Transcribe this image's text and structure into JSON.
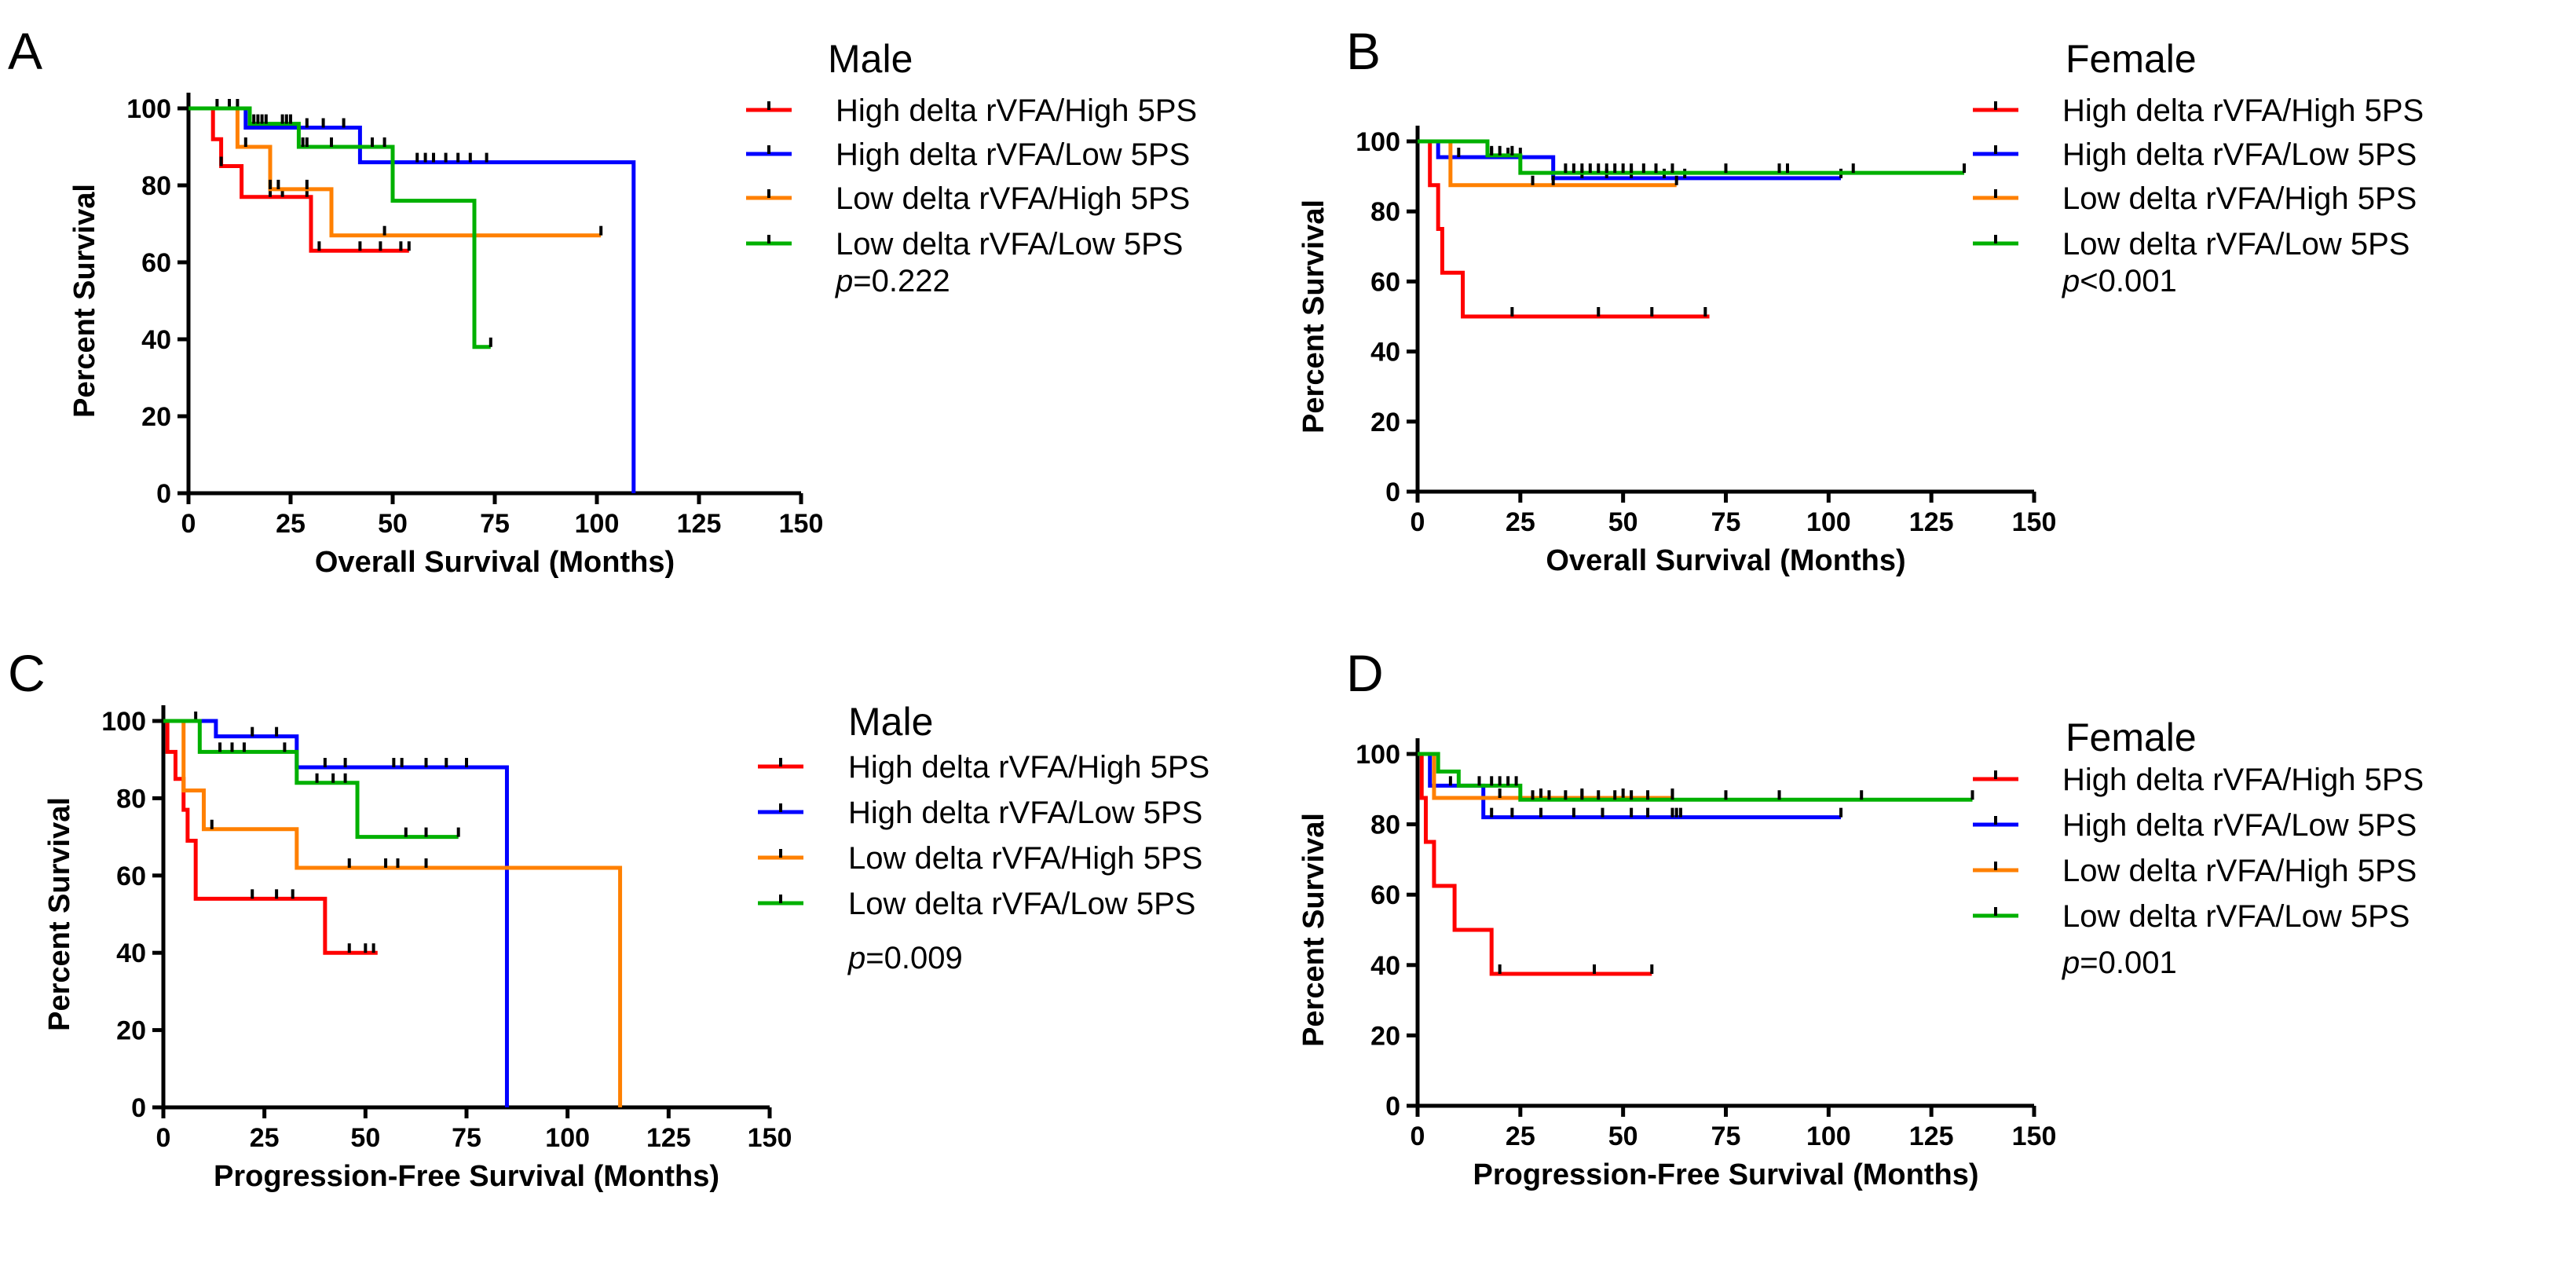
{
  "chart_data": [
    {
      "panel": "A",
      "type": "line",
      "title": "Male",
      "xlabel": "Overall Survival (Months)",
      "ylabel": "Percent Survival",
      "xlim": [
        0,
        150
      ],
      "ylim": [
        0,
        100
      ],
      "xticks": [
        0,
        25,
        50,
        75,
        100,
        125,
        150
      ],
      "yticks": [
        0,
        20,
        40,
        60,
        80,
        100
      ],
      "p_value": "p=0.222",
      "series": [
        {
          "name": "High delta rVFA/High 5PS",
          "color": "#ff0000",
          "steps": [
            [
              0,
              100
            ],
            [
              6,
              92
            ],
            [
              8,
              85
            ],
            [
              13,
              77
            ],
            [
              30,
              63
            ],
            [
              54,
              63
            ]
          ],
          "censored": [
            8,
            20,
            23,
            29,
            32,
            42,
            47,
            52,
            54
          ]
        },
        {
          "name": "High delta rVFA/Low 5PS",
          "color": "#0000ff",
          "steps": [
            [
              0,
              100
            ],
            [
              14,
              95
            ],
            [
              42,
              86
            ],
            [
              109,
              0
            ]
          ],
          "censored": [
            7,
            10,
            12,
            29,
            33,
            38,
            56,
            58,
            60,
            63,
            66,
            69,
            73
          ]
        },
        {
          "name": "Low delta rVFA/High 5PS",
          "color": "#ff8000",
          "steps": [
            [
              0,
              100
            ],
            [
              12,
              90
            ],
            [
              20,
              79
            ],
            [
              35,
              67
            ],
            [
              101,
              67
            ]
          ],
          "censored": [
            14,
            20,
            22,
            29,
            48,
            101
          ]
        },
        {
          "name": "Low delta rVFA/Low 5PS",
          "color": "#00b000",
          "steps": [
            [
              0,
              100
            ],
            [
              15,
              96
            ],
            [
              27,
              90
            ],
            [
              50,
              76
            ],
            [
              70,
              38
            ],
            [
              74,
              38
            ]
          ],
          "censored": [
            16,
            17,
            18,
            19,
            23,
            24,
            25,
            28,
            29,
            35,
            45,
            48,
            74
          ]
        }
      ]
    },
    {
      "panel": "B",
      "type": "line",
      "title": "Female",
      "xlabel": "Overall Survival (Months)",
      "ylabel": "Percent Survival",
      "xlim": [
        0,
        150
      ],
      "ylim": [
        0,
        100
      ],
      "xticks": [
        0,
        25,
        50,
        75,
        100,
        125,
        150
      ],
      "yticks": [
        0,
        20,
        40,
        60,
        80,
        100
      ],
      "p_value": "p<0.001",
      "series": [
        {
          "name": "High delta rVFA/High 5PS",
          "color": "#ff0000",
          "steps": [
            [
              0,
              100
            ],
            [
              3,
              87.5
            ],
            [
              5,
              75
            ],
            [
              6,
              62.5
            ],
            [
              11,
              50
            ],
            [
              71,
              50
            ]
          ],
          "censored": [
            23,
            44,
            57,
            70
          ]
        },
        {
          "name": "High delta rVFA/Low 5PS",
          "color": "#0000ff",
          "steps": [
            [
              0,
              100
            ],
            [
              5,
              95.5
            ],
            [
              33,
              89.5
            ],
            [
              103,
              89.5
            ]
          ],
          "censored": [
            10,
            18,
            22,
            25,
            40,
            46,
            52,
            60,
            65,
            103
          ]
        },
        {
          "name": "Low delta rVFA/High 5PS",
          "color": "#ff8000",
          "steps": [
            [
              0,
              100
            ],
            [
              8,
              87.5
            ],
            [
              63,
              87.5
            ]
          ],
          "censored": [
            28,
            33,
            63
          ]
        },
        {
          "name": "Low delta rVFA/Low 5PS",
          "color": "#00b000",
          "steps": [
            [
              0,
              100
            ],
            [
              17,
              96
            ],
            [
              25,
              91
            ],
            [
              133,
              91
            ]
          ],
          "censored": [
            18,
            20,
            23,
            36,
            38,
            40,
            42,
            44,
            46,
            48,
            50,
            52,
            55,
            58,
            62,
            75,
            88,
            90,
            106,
            133
          ]
        }
      ]
    },
    {
      "panel": "C",
      "type": "line",
      "title": "Male",
      "xlabel": "Progression-Free Survival (Months)",
      "ylabel": "Percent Survival",
      "xlim": [
        0,
        150
      ],
      "ylim": [
        0,
        100
      ],
      "xticks": [
        0,
        25,
        50,
        75,
        100,
        125,
        150
      ],
      "yticks": [
        0,
        20,
        40,
        60,
        80,
        100
      ],
      "p_value": "p=0.009",
      "series": [
        {
          "name": "High delta rVFA/High 5PS",
          "color": "#ff0000",
          "steps": [
            [
              0,
              100
            ],
            [
              1,
              92
            ],
            [
              3,
              85
            ],
            [
              5,
              77
            ],
            [
              6,
              69
            ],
            [
              8,
              54
            ],
            [
              40,
              40
            ],
            [
              53,
              40
            ]
          ],
          "censored": [
            22,
            28,
            32,
            46,
            50,
            52
          ]
        },
        {
          "name": "High delta rVFA/Low 5PS",
          "color": "#0000ff",
          "steps": [
            [
              0,
              100
            ],
            [
              13,
              96
            ],
            [
              33,
              88
            ],
            [
              85,
              0
            ]
          ],
          "censored": [
            8,
            22,
            28,
            40,
            45,
            57,
            59,
            65,
            70,
            75
          ]
        },
        {
          "name": "Low delta rVFA/High 5PS",
          "color": "#ff8000",
          "steps": [
            [
              0,
              100
            ],
            [
              5,
              82
            ],
            [
              10,
              72
            ],
            [
              33,
              62
            ],
            [
              113,
              0
            ]
          ],
          "censored": [
            12,
            46,
            55,
            58,
            65
          ]
        },
        {
          "name": "Low delta rVFA/Low 5PS",
          "color": "#00b000",
          "steps": [
            [
              0,
              100
            ],
            [
              9,
              92
            ],
            [
              33,
              84
            ],
            [
              48,
              70
            ],
            [
              73,
              70
            ]
          ],
          "censored": [
            14,
            17,
            20,
            30,
            38,
            42,
            45,
            60,
            65,
            73
          ]
        }
      ]
    },
    {
      "panel": "D",
      "type": "line",
      "title": "Female",
      "xlabel": "Progression-Free Survival (Months)",
      "ylabel": "Percent Survival",
      "xlim": [
        0,
        150
      ],
      "ylim": [
        0,
        100
      ],
      "xticks": [
        0,
        25,
        50,
        75,
        100,
        125,
        150
      ],
      "yticks": [
        0,
        20,
        40,
        60,
        80,
        100
      ],
      "p_value": "p=0.001",
      "series": [
        {
          "name": "High delta rVFA/High 5PS",
          "color": "#ff0000",
          "steps": [
            [
              0,
              100
            ],
            [
              1,
              87.5
            ],
            [
              2,
              75
            ],
            [
              4,
              62.5
            ],
            [
              9,
              50
            ],
            [
              18,
              37.5
            ],
            [
              57,
              37.5
            ]
          ],
          "censored": [
            20,
            43,
            57
          ]
        },
        {
          "name": "High delta rVFA/Low 5PS",
          "color": "#0000ff",
          "steps": [
            [
              0,
              100
            ],
            [
              3,
              91
            ],
            [
              16,
              82
            ],
            [
              103,
              82
            ]
          ],
          "censored": [
            8,
            18,
            23,
            30,
            38,
            45,
            52,
            56,
            62,
            63,
            64,
            103
          ]
        },
        {
          "name": "Low delta rVFA/High 5PS",
          "color": "#ff8000",
          "steps": [
            [
              0,
              100
            ],
            [
              4,
              87.5
            ],
            [
              62,
              87.5
            ]
          ],
          "censored": [
            20,
            30,
            40,
            50,
            62
          ]
        },
        {
          "name": "Low delta rVFA/Low 5PS",
          "color": "#00b000",
          "steps": [
            [
              0,
              100
            ],
            [
              5,
              95
            ],
            [
              10,
              91
            ],
            [
              25,
              87
            ],
            [
              135,
              87
            ]
          ],
          "censored": [
            15,
            18,
            20,
            22,
            24,
            28,
            32,
            36,
            40,
            44,
            48,
            52,
            56,
            62,
            75,
            88,
            108,
            135
          ]
        }
      ]
    }
  ]
}
